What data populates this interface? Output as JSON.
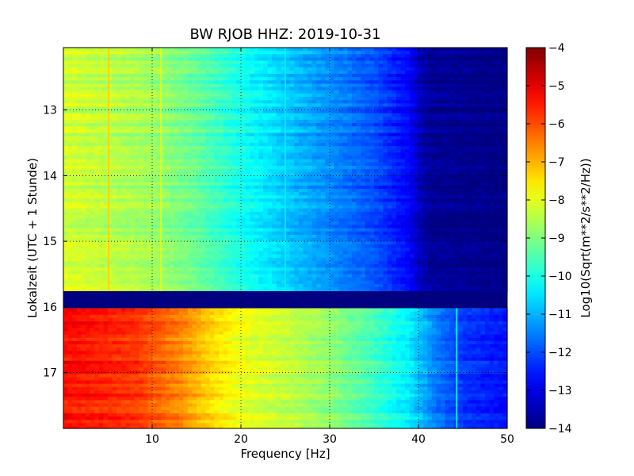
{
  "chart_data": {
    "type": "heatmap",
    "title": "BW RJOB HHZ: 2019-10-31",
    "xlabel": "Frequency [Hz]",
    "ylabel": "Lokalzeit (UTC + 1 Stunde)",
    "xlim": [
      0,
      50
    ],
    "ylim": [
      12.05,
      17.85
    ],
    "y_inverted": true,
    "x_ticks": [
      10,
      20,
      30,
      40,
      50
    ],
    "x_tick_labels": [
      "10",
      "20",
      "30",
      "40",
      "50"
    ],
    "y_ticks": [
      13,
      14,
      15,
      16,
      17
    ],
    "y_tick_labels": [
      "13",
      "14",
      "15",
      "16",
      "17"
    ],
    "grid": true,
    "colormap": "jet",
    "colorbar": {
      "label": "Log10(Sqrt(m**2/s**2/Hz))",
      "range": [
        -14,
        -4
      ],
      "ticks": [
        -4,
        -5,
        -6,
        -7,
        -8,
        -9,
        -10,
        -11,
        -12,
        -13,
        -14
      ],
      "tick_labels": [
        "−4",
        "−5",
        "−6",
        "−7",
        "−8",
        "−9",
        "−10",
        "−11",
        "−12",
        "−13",
        "−14"
      ]
    },
    "segments": [
      {
        "t_start": 12.05,
        "t_end": 15.76,
        "profile": [
          [
            0,
            -8.2
          ],
          [
            10,
            -8.7
          ],
          [
            15,
            -9.3
          ],
          [
            20,
            -10.1
          ],
          [
            25,
            -10.8
          ],
          [
            30,
            -11.4
          ],
          [
            35,
            -12.0
          ],
          [
            39,
            -12.8
          ],
          [
            41,
            -13.8
          ],
          [
            50,
            -14.0
          ]
        ]
      },
      {
        "t_start": 15.76,
        "t_end": 16.02,
        "profile": [
          [
            0,
            -14.0
          ],
          [
            50,
            -14.0
          ]
        ]
      },
      {
        "t_start": 16.02,
        "t_end": 17.85,
        "profile": [
          [
            0,
            -5.3
          ],
          [
            8,
            -5.7
          ],
          [
            13,
            -6.5
          ],
          [
            17,
            -7.4
          ],
          [
            20,
            -7.9
          ],
          [
            25,
            -8.3
          ],
          [
            30,
            -8.8
          ],
          [
            35,
            -9.6
          ],
          [
            39,
            -10.4
          ],
          [
            42,
            -11.5
          ],
          [
            45,
            -12.2
          ],
          [
            50,
            -12.6
          ]
        ]
      }
    ],
    "lines": [
      {
        "freq": 5.1,
        "t_start": 12.05,
        "t_end": 15.76,
        "value": -7.3
      },
      {
        "freq": 11.0,
        "t_start": 12.05,
        "t_end": 15.76,
        "value": -7.9
      },
      {
        "freq": 25.0,
        "t_start": 12.05,
        "t_end": 15.76,
        "value": -10.4
      },
      {
        "freq": 44.3,
        "t_start": 16.02,
        "t_end": 17.85,
        "value": -10.2
      }
    ]
  }
}
